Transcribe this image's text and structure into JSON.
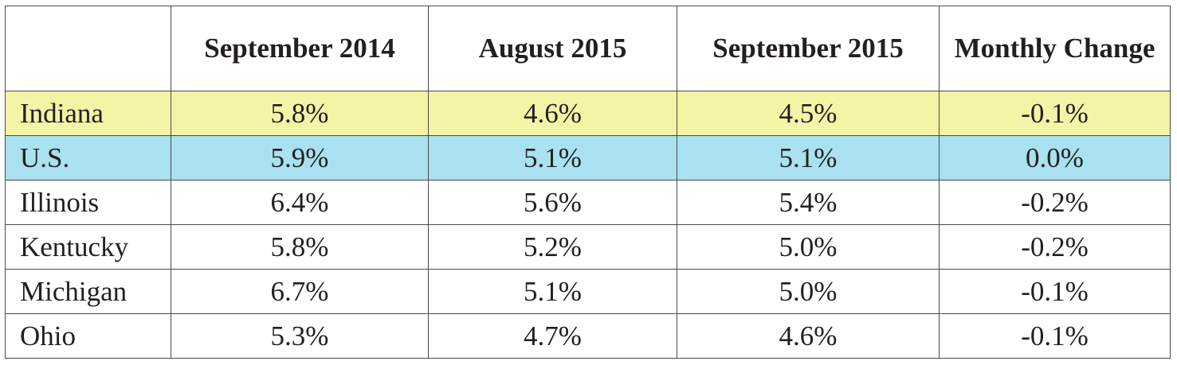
{
  "table": {
    "columns": [
      "September 2014",
      "August 2015",
      "September 2015",
      "Monthly Change"
    ],
    "rows": [
      {
        "label": "Indiana",
        "cells": [
          "5.8%",
          "4.6%",
          "4.5%",
          "-0.1%"
        ]
      },
      {
        "label": "U.S.",
        "cells": [
          "5.9%",
          "5.1%",
          "5.1%",
          "0.0%"
        ]
      },
      {
        "label": "Illinois",
        "cells": [
          "6.4%",
          "5.6%",
          "5.4%",
          "-0.2%"
        ]
      },
      {
        "label": "Kentucky",
        "cells": [
          "5.8%",
          "5.2%",
          "5.0%",
          "-0.2%"
        ]
      },
      {
        "label": "Michigan",
        "cells": [
          "6.7%",
          "5.1%",
          "5.0%",
          "-0.1%"
        ]
      },
      {
        "label": "Ohio",
        "cells": [
          "5.3%",
          "4.7%",
          "4.6%",
          "-0.1%"
        ]
      }
    ]
  }
}
